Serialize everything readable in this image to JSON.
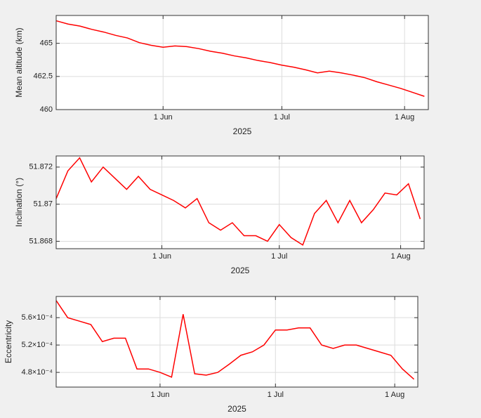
{
  "chart_data": [
    {
      "type": "line",
      "y_label": "Mean altitude (km)",
      "x_label": "2025",
      "color": "#ff0000",
      "grid": true,
      "x": [
        "2025-05-05",
        "2025-05-08",
        "2025-05-11",
        "2025-05-14",
        "2025-05-17",
        "2025-05-20",
        "2025-05-23",
        "2025-05-26",
        "2025-05-29",
        "2025-06-01",
        "2025-06-04",
        "2025-06-07",
        "2025-06-10",
        "2025-06-13",
        "2025-06-16",
        "2025-06-19",
        "2025-06-22",
        "2025-06-25",
        "2025-06-28",
        "2025-07-01",
        "2025-07-04",
        "2025-07-07",
        "2025-07-10",
        "2025-07-13",
        "2025-07-16",
        "2025-07-19",
        "2025-07-22",
        "2025-07-25",
        "2025-07-28",
        "2025-07-31",
        "2025-08-03",
        "2025-08-06"
      ],
      "values": [
        466.7,
        466.45,
        466.3,
        466.05,
        465.85,
        465.6,
        465.4,
        465.05,
        464.85,
        464.7,
        464.8,
        464.75,
        464.6,
        464.4,
        464.25,
        464.05,
        463.9,
        463.7,
        463.55,
        463.35,
        463.2,
        463.0,
        462.77,
        462.9,
        462.77,
        462.6,
        462.4,
        462.1,
        461.85,
        461.6,
        461.3,
        461.0
      ],
      "xlim": [
        "2025-05-05",
        "2025-08-07"
      ],
      "xticks": [
        {
          "value": "2025-06-01",
          "label": "1 Jun"
        },
        {
          "value": "2025-07-01",
          "label": "1 Jul"
        },
        {
          "value": "2025-08-01",
          "label": "1 Aug"
        }
      ],
      "ylim": [
        460,
        467.1
      ],
      "yticks": [
        460,
        462.5,
        465
      ]
    },
    {
      "type": "line",
      "y_label": "Inclination (°)",
      "x_label": "2025",
      "color": "#ff0000",
      "grid": true,
      "x": [
        "2025-05-05",
        "2025-05-08",
        "2025-05-11",
        "2025-05-14",
        "2025-05-17",
        "2025-05-20",
        "2025-05-23",
        "2025-05-26",
        "2025-05-29",
        "2025-06-01",
        "2025-06-04",
        "2025-06-07",
        "2025-06-10",
        "2025-06-13",
        "2025-06-16",
        "2025-06-19",
        "2025-06-22",
        "2025-06-25",
        "2025-06-28",
        "2025-07-01",
        "2025-07-04",
        "2025-07-07",
        "2025-07-10",
        "2025-07-13",
        "2025-07-16",
        "2025-07-19",
        "2025-07-22",
        "2025-07-25",
        "2025-07-28",
        "2025-07-31",
        "2025-08-03",
        "2025-08-06"
      ],
      "values": [
        51.8703,
        51.8718,
        51.8725,
        51.8712,
        51.872,
        51.8714,
        51.8708,
        51.8715,
        51.8708,
        51.8705,
        51.8702,
        51.8698,
        51.8703,
        51.869,
        51.8686,
        51.869,
        51.8683,
        51.8683,
        51.868,
        51.8689,
        51.8682,
        51.8678,
        51.8695,
        51.8702,
        51.869,
        51.8702,
        51.869,
        51.8697,
        51.8706,
        51.8705,
        51.8711,
        51.8692
      ],
      "xlim": [
        "2025-05-05",
        "2025-08-07"
      ],
      "xticks": [
        {
          "value": "2025-06-01",
          "label": "1 Jun"
        },
        {
          "value": "2025-07-01",
          "label": "1 Jul"
        },
        {
          "value": "2025-08-01",
          "label": "1 Aug"
        }
      ],
      "ylim": [
        51.8676,
        51.8726
      ],
      "yticks": [
        51.868,
        51.87,
        51.872
      ]
    },
    {
      "type": "line",
      "y_label": "Eccentricity",
      "x_label": "2025",
      "color": "#ff0000",
      "grid": true,
      "x": [
        "2025-05-05",
        "2025-05-08",
        "2025-05-11",
        "2025-05-14",
        "2025-05-17",
        "2025-05-20",
        "2025-05-23",
        "2025-05-26",
        "2025-05-29",
        "2025-06-01",
        "2025-06-04",
        "2025-06-07",
        "2025-06-10",
        "2025-06-13",
        "2025-06-16",
        "2025-06-19",
        "2025-06-22",
        "2025-06-25",
        "2025-06-28",
        "2025-07-01",
        "2025-07-04",
        "2025-07-07",
        "2025-07-10",
        "2025-07-13",
        "2025-07-16",
        "2025-07-19",
        "2025-07-22",
        "2025-07-25",
        "2025-07-28",
        "2025-07-31",
        "2025-08-03",
        "2025-08-06"
      ],
      "values": [
        0.000585,
        0.00056,
        0.000555,
        0.00055,
        0.000525,
        0.00053,
        0.00053,
        0.000485,
        0.000485,
        0.00048,
        0.000473,
        0.000565,
        0.000478,
        0.000476,
        0.00048,
        0.000492,
        0.000505,
        0.00051,
        0.00052,
        0.000542,
        0.000542,
        0.000545,
        0.000545,
        0.00052,
        0.000515,
        0.00052,
        0.00052,
        0.000515,
        0.00051,
        0.000505,
        0.000485,
        0.00047
      ],
      "xlim": [
        "2025-05-05",
        "2025-08-07"
      ],
      "xticks": [
        {
          "value": "2025-06-01",
          "label": "1 Jun"
        },
        {
          "value": "2025-07-01",
          "label": "1 Jul"
        },
        {
          "value": "2025-08-01",
          "label": "1 Aug"
        }
      ],
      "ylim": [
        0.0004585,
        0.000591
      ],
      "yticks": [
        {
          "value": 0.00048,
          "label": "4.8×10⁻⁴"
        },
        {
          "value": 0.00052,
          "label": "5.2×10⁻⁴"
        },
        {
          "value": 0.00056,
          "label": "5.6×10⁻⁴"
        }
      ]
    }
  ]
}
